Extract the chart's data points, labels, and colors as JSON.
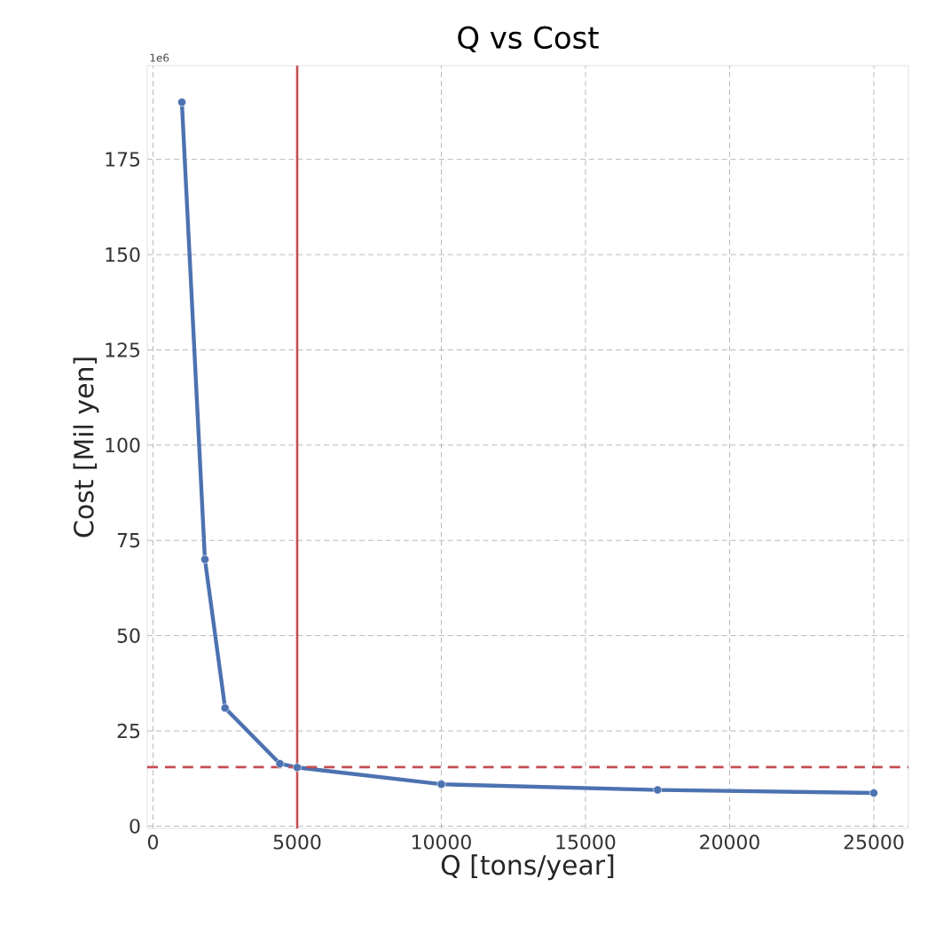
{
  "chart_data": {
    "type": "line",
    "title": "Q vs Cost",
    "xlabel": "Q [tons/year]",
    "ylabel": "Cost [Mil yen]",
    "annotations": [
      "1e6"
    ],
    "x": [
      1000,
      1800,
      2500,
      4400,
      5000,
      10000,
      17500,
      25000
    ],
    "series": [
      {
        "color": "#4c72b0",
        "values": [
          190,
          70,
          31,
          16.4,
          15.4,
          11,
          9.5,
          8.7
        ]
      }
    ],
    "xlim": [
      -200,
      26200
    ],
    "ylim": [
      -0.6,
      199.6
    ],
    "xticks": [
      0,
      5000,
      10000,
      15000,
      20000,
      25000
    ],
    "yticks": [
      0,
      25,
      50,
      75,
      100,
      125,
      150,
      175
    ],
    "ref_lines": [
      {
        "axis": "x",
        "value": 5000,
        "color": "#c44e52",
        "line_style": "solid"
      },
      {
        "axis": "y",
        "value": 15.5,
        "color": "#c44e52",
        "line_style": "dashed"
      }
    ],
    "grid": true,
    "marker": "circle",
    "line_style": "solid"
  }
}
